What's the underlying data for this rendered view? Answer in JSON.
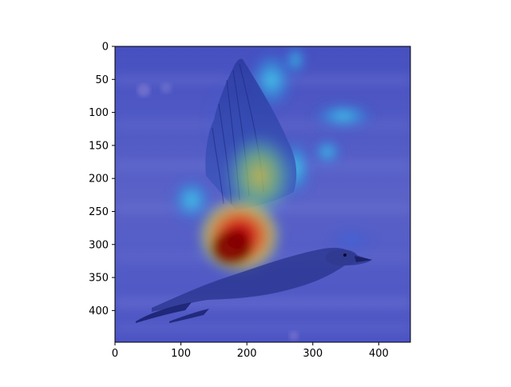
{
  "figure": {
    "subject": "bird-in-flight-attention-heatmap",
    "colormap": "jet",
    "overlay_on": "bird photo (seagull in flight over water)"
  },
  "axes": {
    "x": {
      "range": [
        0,
        448
      ],
      "ticks": [
        0,
        100,
        200,
        300,
        400
      ],
      "labels": [
        "0",
        "100",
        "200",
        "300",
        "400"
      ]
    },
    "y": {
      "range": [
        0,
        448
      ],
      "inverted": true,
      "ticks": [
        0,
        50,
        100,
        150,
        200,
        250,
        300,
        350,
        400
      ],
      "labels": [
        "0",
        "50",
        "100",
        "150",
        "200",
        "250",
        "300",
        "350",
        "400"
      ]
    }
  },
  "colors": {
    "background_blue": "#4a55c8",
    "hot": "#b00000",
    "warm": "#f0a020",
    "cool": "#30d0e0"
  }
}
